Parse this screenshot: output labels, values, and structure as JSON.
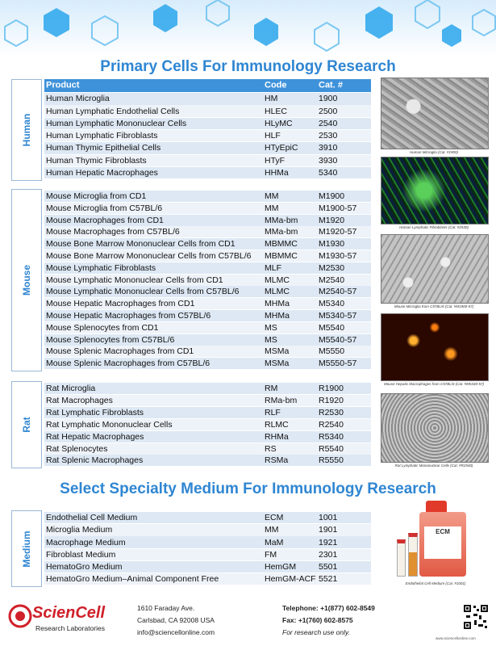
{
  "header": {
    "title": "Primary Cells For Immunology Research"
  },
  "table_header": [
    "Product",
    "Code",
    "Cat. #"
  ],
  "sections": [
    {
      "label": "Human",
      "rows": [
        [
          "Human Microglia",
          "HM",
          "1900"
        ],
        [
          "Human Lymphatic Endothelial Cells",
          "HLEC",
          "2500"
        ],
        [
          "Human Lymphatic Mononuclear Cells",
          "HLyMC",
          "2540"
        ],
        [
          "Human Lymphatic Fibroblasts",
          "HLF",
          "2530"
        ],
        [
          "Human Thymic Epithelial Cells",
          "HTyEpiC",
          "3910"
        ],
        [
          "Human Thymic Fibroblasts",
          "HTyF",
          "3930"
        ],
        [
          "Human Hepatic Macrophages",
          "HHMa",
          "5340"
        ]
      ]
    },
    {
      "label": "Mouse",
      "rows": [
        [
          "Mouse Microglia from CD1",
          "MM",
          "M1900"
        ],
        [
          "Mouse Microglia from C57BL/6",
          "MM",
          "M1900-57"
        ],
        [
          "Mouse Macrophages from CD1",
          "MMa-bm",
          "M1920"
        ],
        [
          "Mouse Macrophages from C57BL/6",
          "MMa-bm",
          "M1920-57"
        ],
        [
          "Mouse Bone Marrow Mononuclear Cells from CD1",
          "MBMMC",
          "M1930"
        ],
        [
          "Mouse Bone Marrow Mononuclear Cells from C57BL/6",
          "MBMMC",
          "M1930-57"
        ],
        [
          "Mouse Lymphatic Fibroblasts",
          "MLF",
          "M2530"
        ],
        [
          "Mouse Lymphatic Mononuclear Cells from CD1",
          "MLMC",
          "M2540"
        ],
        [
          "Mouse Lymphatic Mononuclear Cells from C57BL/6",
          "MLMC",
          "M2540-57"
        ],
        [
          "Mouse Hepatic Macrophages from CD1",
          "MHMa",
          "M5340"
        ],
        [
          "Mouse Hepatic Macrophages from C57BL/6",
          "MHMa",
          "M5340-57"
        ],
        [
          "Mouse Splenocytes from CD1",
          "MS",
          "M5540"
        ],
        [
          "Mouse Splenocytes from C57BL/6",
          "MS",
          "M5540-57"
        ],
        [
          "Mouse Splenic Macrophages from CD1",
          "MSMa",
          "M5550"
        ],
        [
          "Mouse Splenic Macrophages from C57BL/6",
          "MSMa",
          "M5550-57"
        ]
      ]
    },
    {
      "label": "Rat",
      "rows": [
        [
          "Rat Microglia",
          "RM",
          "R1900"
        ],
        [
          "Rat Macrophages",
          "RMa-bm",
          "R1920"
        ],
        [
          "Rat Lymphatic Fibroblasts",
          "RLF",
          "R2530"
        ],
        [
          "Rat Lymphatic Mononuclear Cells",
          "RLMC",
          "R2540"
        ],
        [
          "Rat Hepatic Macrophages",
          "RHMa",
          "R5340"
        ],
        [
          "Rat Splenocytes",
          "RS",
          "R5540"
        ],
        [
          "Rat Splenic Macrophages",
          "RSMa",
          "R5550"
        ]
      ]
    }
  ],
  "images": [
    {
      "caption": "Human Microglia (Cat. #1900)"
    },
    {
      "caption": "Human Lymphatic Fibroblasts (Cat. #2530)"
    },
    {
      "caption": "Mouse Microglia from C57BL/6 (Cat. #M1900-57)"
    },
    {
      "caption": "Mouse Hepatic Macrophages from C57BL/6 (Cat. #M5340-57)"
    },
    {
      "caption": "Rat Lymphatic Mononuclear Cells (Cat. #R2540)"
    }
  ],
  "medium": {
    "title": "Select Specialty Medium For Immunology Research",
    "label": "Medium",
    "rows": [
      [
        "Endothelial Cell Medium",
        "ECM",
        "1001"
      ],
      [
        "Microglia Medium",
        "MM",
        "1901"
      ],
      [
        "Macrophage Medium",
        "MaM",
        "1921"
      ],
      [
        "Fibroblast Medium",
        "FM",
        "2301"
      ],
      [
        "HematoGro Medium",
        "HemGM",
        "5501"
      ],
      [
        "HematoGro Medium–Animal Component Free",
        "HemGM-ACF",
        "5521"
      ]
    ],
    "bottle_label": "ECM",
    "caption": "Endothelial Cell Medium (Cat. #1001)"
  },
  "footer": {
    "brand": "ScienCell",
    "brand_sub": "Research Laboratories",
    "address": [
      "1610 Faraday Ave.",
      "Carlsbad, CA 92008 USA",
      "info@sciencellonline.com"
    ],
    "contact": [
      "Telephone: +1(877) 602-8549",
      "Fax: +1(760) 602-8575",
      "For research use only."
    ],
    "website": "www.sciencellonline.com"
  }
}
